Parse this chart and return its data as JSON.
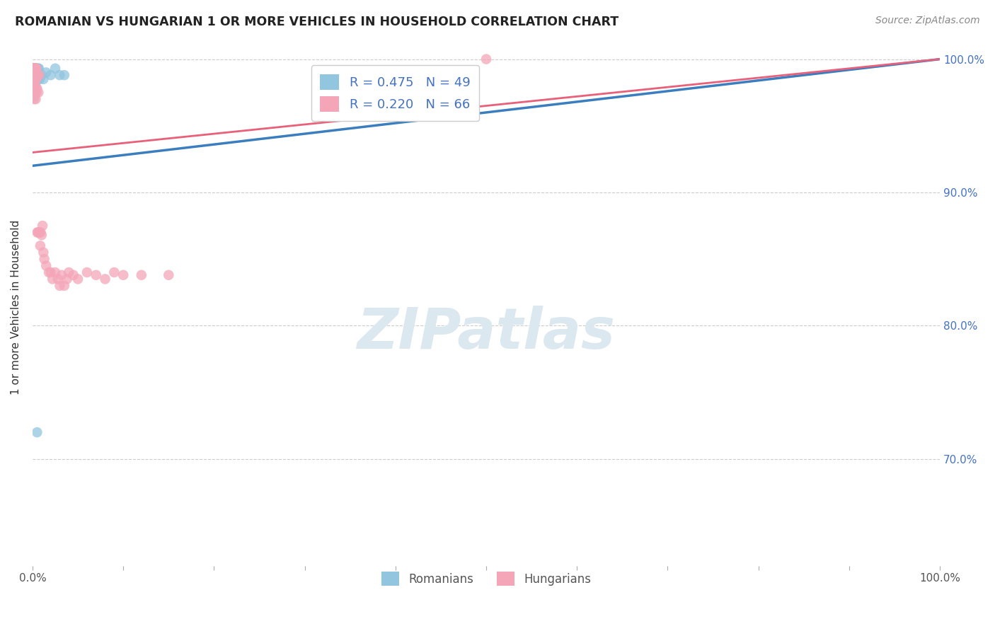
{
  "title": "ROMANIAN VS HUNGARIAN 1 OR MORE VEHICLES IN HOUSEHOLD CORRELATION CHART",
  "source": "Source: ZipAtlas.com",
  "ylabel": "1 or more Vehicles in Household",
  "xlim": [
    0.0,
    1.0
  ],
  "ylim": [
    0.62,
    1.008
  ],
  "yticks": [
    0.7,
    0.8,
    0.9,
    1.0
  ],
  "ytick_labels": [
    "70.0%",
    "80.0%",
    "90.0%",
    "100.0%"
  ],
  "xticks": [
    0.0,
    0.1,
    0.2,
    0.3,
    0.4,
    0.5,
    0.6,
    0.7,
    0.8,
    0.9,
    1.0
  ],
  "xtick_labels": [
    "0.0%",
    "",
    "",
    "",
    "",
    "",
    "",
    "",
    "",
    "",
    "100.0%"
  ],
  "legend_R_blue": "R = 0.475",
  "legend_N_blue": "N = 49",
  "legend_R_pink": "R = 0.220",
  "legend_N_pink": "N = 66",
  "blue_color": "#92c5de",
  "pink_color": "#f4a6b8",
  "blue_line_color": "#3a7ebf",
  "pink_line_color": "#e8607a",
  "watermark_color": "#dce8f0",
  "blue_points_x": [
    0.0005,
    0.0005,
    0.0008,
    0.0008,
    0.001,
    0.001,
    0.001,
    0.001,
    0.0012,
    0.0012,
    0.0015,
    0.0015,
    0.0015,
    0.0015,
    0.0015,
    0.0018,
    0.0018,
    0.0018,
    0.002,
    0.002,
    0.002,
    0.0022,
    0.0022,
    0.0025,
    0.0025,
    0.0028,
    0.003,
    0.003,
    0.0032,
    0.0035,
    0.0038,
    0.004,
    0.0042,
    0.0045,
    0.005,
    0.0055,
    0.006,
    0.0065,
    0.007,
    0.0075,
    0.008,
    0.01,
    0.012,
    0.015,
    0.02,
    0.025,
    0.03,
    0.035,
    0.005
  ],
  "blue_points_y": [
    0.993,
    0.988,
    0.993,
    0.985,
    0.993,
    0.99,
    0.985,
    0.978,
    0.993,
    0.988,
    0.993,
    0.99,
    0.985,
    0.98,
    0.972,
    0.993,
    0.988,
    0.978,
    0.993,
    0.988,
    0.975,
    0.993,
    0.985,
    0.993,
    0.98,
    0.993,
    0.993,
    0.985,
    0.993,
    0.988,
    0.988,
    0.993,
    0.985,
    0.99,
    0.993,
    0.988,
    0.993,
    0.985,
    0.993,
    0.988,
    0.985,
    0.988,
    0.985,
    0.99,
    0.988,
    0.993,
    0.988,
    0.988,
    0.72
  ],
  "pink_points_x": [
    0.0005,
    0.0005,
    0.0008,
    0.001,
    0.001,
    0.0012,
    0.0012,
    0.0015,
    0.0015,
    0.0015,
    0.0018,
    0.0018,
    0.002,
    0.002,
    0.0022,
    0.0022,
    0.0025,
    0.0025,
    0.0028,
    0.0028,
    0.003,
    0.003,
    0.0032,
    0.0035,
    0.0035,
    0.0038,
    0.004,
    0.004,
    0.0042,
    0.0045,
    0.0048,
    0.005,
    0.0052,
    0.0055,
    0.006,
    0.0065,
    0.007,
    0.0075,
    0.008,
    0.0085,
    0.009,
    0.01,
    0.011,
    0.012,
    0.013,
    0.015,
    0.018,
    0.02,
    0.022,
    0.025,
    0.028,
    0.03,
    0.032,
    0.035,
    0.038,
    0.04,
    0.045,
    0.05,
    0.06,
    0.07,
    0.08,
    0.09,
    0.1,
    0.12,
    0.15,
    0.5
  ],
  "pink_points_y": [
    0.993,
    0.988,
    0.993,
    0.993,
    0.985,
    0.993,
    0.978,
    0.993,
    0.985,
    0.975,
    0.993,
    0.98,
    0.993,
    0.97,
    0.993,
    0.98,
    0.993,
    0.975,
    0.993,
    0.98,
    0.993,
    0.975,
    0.985,
    0.993,
    0.97,
    0.993,
    0.985,
    0.978,
    0.993,
    0.975,
    0.988,
    0.978,
    0.87,
    0.988,
    0.87,
    0.975,
    0.87,
    0.988,
    0.87,
    0.86,
    0.87,
    0.868,
    0.875,
    0.855,
    0.85,
    0.845,
    0.84,
    0.84,
    0.835,
    0.84,
    0.835,
    0.83,
    0.838,
    0.83,
    0.835,
    0.84,
    0.838,
    0.835,
    0.84,
    0.838,
    0.835,
    0.84,
    0.838,
    0.838,
    0.838,
    1.0
  ],
  "blue_trendline_x": [
    0.0,
    1.0
  ],
  "blue_trendline_y": [
    0.92,
    1.0
  ],
  "pink_trendline_x": [
    0.0,
    1.0
  ],
  "pink_trendline_y": [
    0.93,
    1.0
  ]
}
